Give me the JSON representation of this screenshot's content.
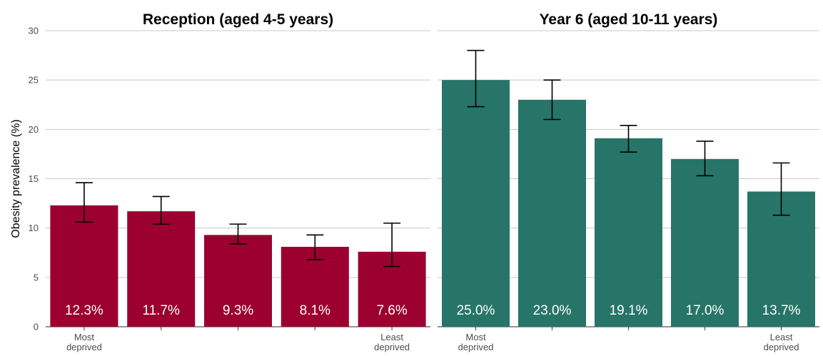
{
  "chart_data": {
    "type": "bar",
    "ylabel": "Obesity prevalence (%)",
    "ylim": [
      0,
      30
    ],
    "yticks": [
      0,
      5,
      10,
      15,
      20,
      25,
      30
    ],
    "grid": true,
    "categories": [
      "Most deprived",
      "",
      "",
      "",
      "Least deprived"
    ],
    "category_labels": [
      [
        "Most",
        "deprived"
      ],
      [],
      [],
      [],
      [
        "Least",
        "deprived"
      ]
    ],
    "panels": [
      {
        "title": "Reception (aged 4-5 years)",
        "color": "#9b0030",
        "values": [
          12.3,
          11.7,
          9.3,
          8.1,
          7.6
        ],
        "labels": [
          "12.3%",
          "11.7%",
          "9.3%",
          "8.1%",
          "7.6%"
        ],
        "ci_low": [
          10.6,
          10.4,
          8.4,
          6.8,
          6.1
        ],
        "ci_high": [
          14.6,
          13.2,
          10.4,
          9.3,
          10.5
        ]
      },
      {
        "title": "Year 6 (aged 10-11 years)",
        "color": "#267568",
        "values": [
          25.0,
          23.0,
          19.1,
          17.0,
          13.7
        ],
        "labels": [
          "25.0%",
          "23.0%",
          "19.1%",
          "17.0%",
          "13.7%"
        ],
        "ci_low": [
          22.3,
          21.0,
          17.7,
          15.3,
          11.3
        ],
        "ci_high": [
          28.0,
          25.0,
          20.4,
          18.8,
          16.6
        ]
      }
    ]
  }
}
